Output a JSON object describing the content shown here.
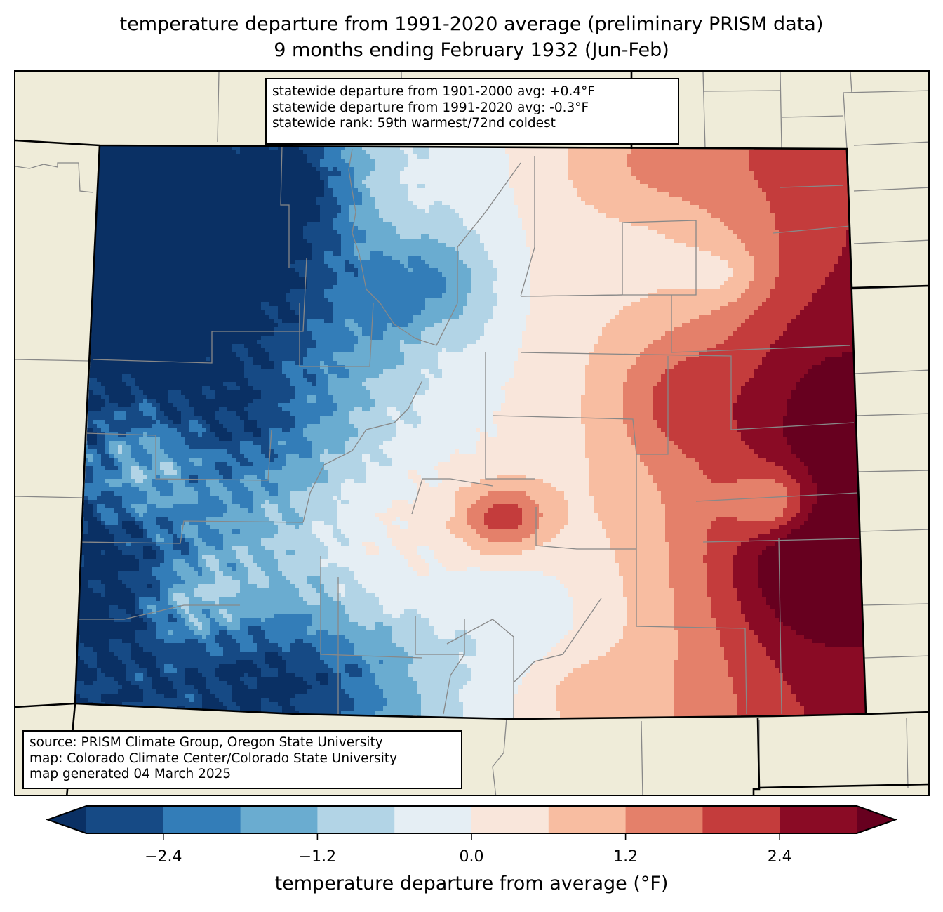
{
  "title": {
    "line1": "temperature departure from 1991-2020 average (preliminary PRISM data)",
    "line2": "9 months ending February 1932 (Jun-Feb)"
  },
  "stats_box": {
    "line1": "statewide departure from 1901-2000 avg: +0.4°F",
    "line2": "statewide departure from 1991-2020 avg: -0.3°F",
    "line3": "statewide rank: 59th warmest/72nd coldest"
  },
  "source_box": {
    "line1": "source: PRISM Climate Group, Oregon State University",
    "line2": "map: Colorado Climate Center/Colorado State University",
    "line3": "map generated 04 March 2025"
  },
  "colorbar": {
    "label": "temperature departure from average (°F)",
    "levels": [
      -3.0,
      -2.4,
      -1.8,
      -1.2,
      -0.6,
      0.0,
      0.6,
      1.2,
      1.8,
      2.4,
      3.0
    ],
    "colors": [
      "#164a85",
      "#337db8",
      "#6aacd0",
      "#b2d4e6",
      "#e5eef4",
      "#f9e6db",
      "#f8bda1",
      "#e4806a",
      "#c43c3c",
      "#8a0b25"
    ],
    "under_color": "#0a3064",
    "over_color": "#67001f",
    "ticks": [
      "−2.4",
      "−1.2",
      "0.0",
      "1.2",
      "2.4"
    ],
    "tick_values": [
      -2.4,
      -1.2,
      0.0,
      1.2,
      2.4
    ],
    "extend": "both"
  },
  "map": {
    "region": "Colorado",
    "land_color": "#efecd9",
    "county_line_color": "#888888",
    "state_line_color": "#000000",
    "pattern": {
      "west": "below average (blue), coldest in northwest and southwest corners",
      "east": "above average (red), warmest in southeast plains",
      "hotspots": [
        {
          "area": "southeast plains near Kansas border",
          "value_range": "2.4 to 3.0+"
        },
        {
          "area": "Pueblo / Fremont area",
          "value_range": "2.4 to 3.0"
        },
        {
          "area": "east-central plains",
          "value_range": "1.8 to 2.4"
        }
      ],
      "coldspots": [
        {
          "area": "northwest Colorado",
          "value_range": "below -2.4"
        },
        {
          "area": "San Juan Mountains / south-central",
          "value_range": "below -2.4"
        },
        {
          "area": "North Park / Grand County",
          "value_range": "-2.4 to -1.8"
        }
      ]
    }
  }
}
